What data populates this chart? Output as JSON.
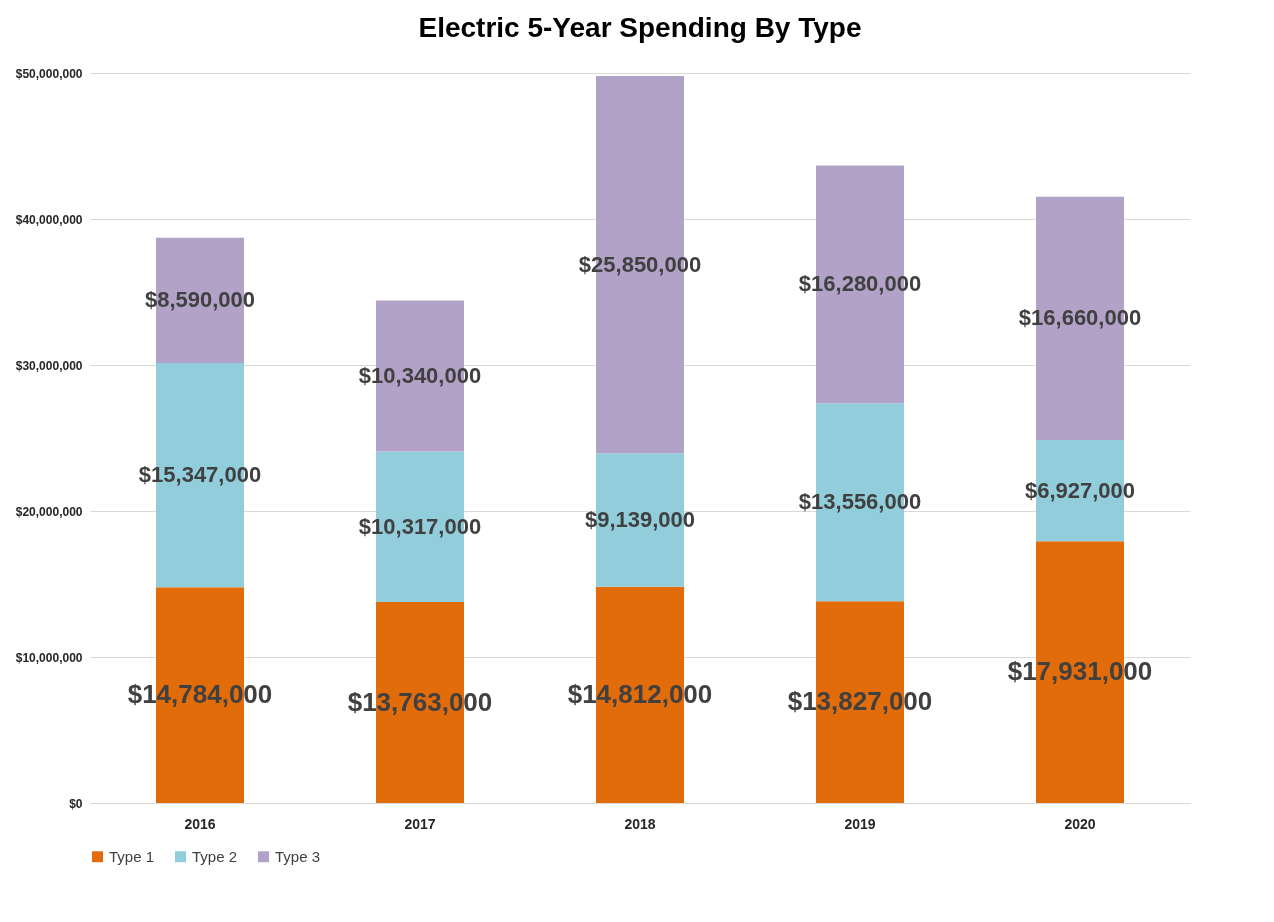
{
  "chart_data": {
    "type": "bar",
    "title": "Electric 5-Year Spending By Type",
    "stacked": true,
    "categories": [
      "2016",
      "2017",
      "2018",
      "2019",
      "2020"
    ],
    "series": [
      {
        "name": "Type 1",
        "color": "#e36c0a",
        "values": [
          14784000,
          13763000,
          14812000,
          13827000,
          17931000
        ],
        "value_labels": [
          "$14,784,000",
          "$13,763,000",
          "$14,812,000",
          "$13,827,000",
          "$17,931,000"
        ]
      },
      {
        "name": "Type 2",
        "color": "#92cddc",
        "values": [
          15347000,
          10317000,
          9139000,
          13556000,
          6927000
        ],
        "value_labels": [
          "$15,347,000",
          "$10,317,000",
          "$9,139,000",
          "$13,556,000",
          "$6,927,000"
        ]
      },
      {
        "name": "Type 3",
        "color": "#b2a2c7",
        "values": [
          8590000,
          10340000,
          25850000,
          16280000,
          16660000
        ],
        "value_labels": [
          "$8,590,000",
          "$10,340,000",
          "$25,850,000",
          "$16,280,000",
          "$16,660,000"
        ]
      }
    ],
    "ylim": [
      0,
      50000000
    ],
    "yticks": [
      {
        "value": 0,
        "label": "$0"
      },
      {
        "value": 10000000,
        "label": "$10,000,000"
      },
      {
        "value": 20000000,
        "label": "$20,000,000"
      },
      {
        "value": 30000000,
        "label": "$30,000,000"
      },
      {
        "value": 40000000,
        "label": "$40,000,000"
      },
      {
        "value": 50000000,
        "label": "$50,000,000"
      }
    ],
    "grid": "y",
    "legend": "bottom"
  }
}
